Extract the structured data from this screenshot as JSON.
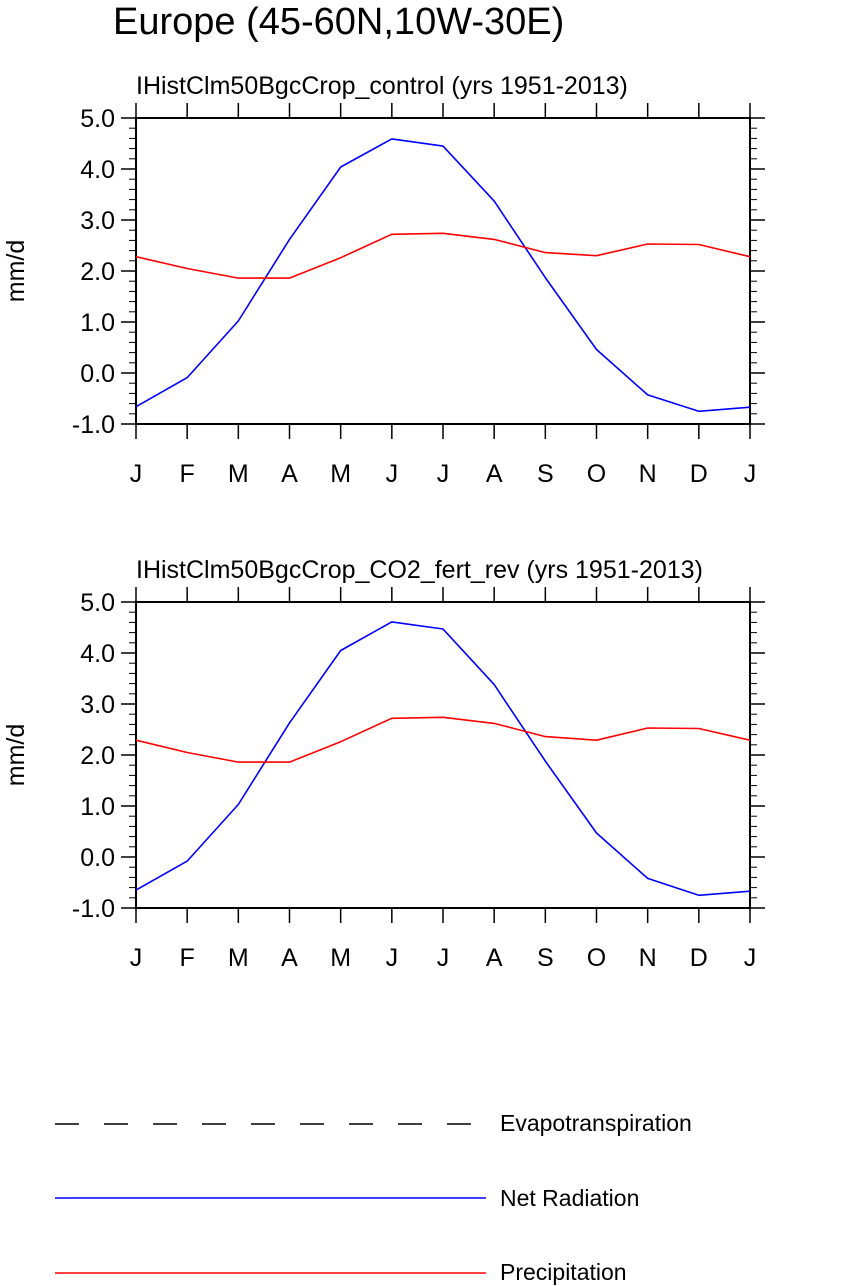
{
  "figure": {
    "title": "Europe (45-60N,10W-30E)"
  },
  "legend": {
    "items": [
      {
        "label": "Evapotranspiration",
        "color": "#000000",
        "style": "dashed"
      },
      {
        "label": "Net Radiation",
        "color": "#0000ff",
        "style": "solid"
      },
      {
        "label": "Precipitation",
        "color": "#ff0000",
        "style": "solid"
      }
    ]
  },
  "chart_data": [
    {
      "type": "line",
      "title": "IHistClm50BgcCrop_control (yrs 1951-2013)",
      "xlabel": "",
      "ylabel": "mm/d",
      "ylim": [
        -1.0,
        5.0
      ],
      "yticks": [
        "5.0",
        "4.0",
        "3.0",
        "2.0",
        "1.0",
        "0.0",
        "-1.0"
      ],
      "categories": [
        "J",
        "F",
        "M",
        "A",
        "M",
        "J",
        "J",
        "A",
        "S",
        "O",
        "N",
        "D",
        "J"
      ],
      "grid": false,
      "series": [
        {
          "name": "Net Radiation",
          "color": "#0000ff",
          "values": [
            -0.66,
            -0.09,
            1.02,
            2.62,
            4.04,
            4.59,
            4.45,
            3.37,
            1.87,
            0.46,
            -0.43,
            -0.75,
            -0.67
          ]
        },
        {
          "name": "Precipitation",
          "color": "#ff0000",
          "values": [
            2.28,
            2.05,
            1.86,
            1.86,
            2.26,
            2.72,
            2.74,
            2.62,
            2.36,
            2.3,
            2.53,
            2.52,
            2.28
          ]
        }
      ]
    },
    {
      "type": "line",
      "title": "IHistClm50BgcCrop_CO2_fert_rev (yrs 1951-2013)",
      "xlabel": "",
      "ylabel": "mm/d",
      "ylim": [
        -1.0,
        5.0
      ],
      "yticks": [
        "5.0",
        "4.0",
        "3.0",
        "2.0",
        "1.0",
        "0.0",
        "-1.0"
      ],
      "categories": [
        "J",
        "F",
        "M",
        "A",
        "M",
        "J",
        "J",
        "A",
        "S",
        "O",
        "N",
        "D",
        "J"
      ],
      "grid": false,
      "series": [
        {
          "name": "Net Radiation",
          "color": "#0000ff",
          "values": [
            -0.65,
            -0.08,
            1.03,
            2.63,
            4.05,
            4.61,
            4.47,
            3.38,
            1.88,
            0.47,
            -0.42,
            -0.75,
            -0.67
          ]
        },
        {
          "name": "Precipitation",
          "color": "#ff0000",
          "values": [
            2.29,
            2.05,
            1.86,
            1.86,
            2.26,
            2.72,
            2.74,
            2.62,
            2.36,
            2.29,
            2.53,
            2.52,
            2.29
          ]
        }
      ]
    }
  ]
}
